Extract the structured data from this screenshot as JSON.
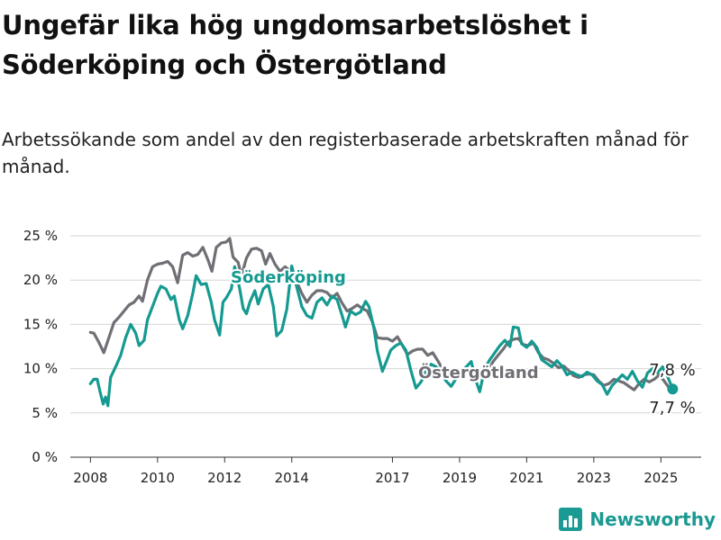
{
  "header": {
    "title": "Ungefär lika hög ungdomsarbetslöshet i Söderköping och Östergötland",
    "subtitle": "Arbetssökande som andel av den registerbaserade arbetskraften månad för månad."
  },
  "brand": {
    "name": "Newsworthy",
    "icon": "newsworthy-logo-icon",
    "color": "#1a9a92"
  },
  "chart_data": {
    "type": "line",
    "x_unit": "year",
    "xlim": [
      2007.4,
      2026.2
    ],
    "ylim": [
      0,
      25
    ],
    "x_ticks": [
      {
        "value": 2008,
        "label": "2008"
      },
      {
        "value": 2010,
        "label": "2010"
      },
      {
        "value": 2012,
        "label": "2012"
      },
      {
        "value": 2014,
        "label": "2014"
      },
      {
        "value": 2017,
        "label": "2017"
      },
      {
        "value": 2019,
        "label": "2019"
      },
      {
        "value": 2021,
        "label": "2021"
      },
      {
        "value": 2023,
        "label": "2023"
      },
      {
        "value": 2025,
        "label": "2025"
      }
    ],
    "y_ticks": [
      {
        "value": 0,
        "label": "0 %"
      },
      {
        "value": 5,
        "label": "5 %"
      },
      {
        "value": 10,
        "label": "10 %"
      },
      {
        "value": 15,
        "label": "15 %"
      },
      {
        "value": 20,
        "label": "20 %"
      },
      {
        "value": 25,
        "label": "25 %"
      }
    ],
    "grid": true,
    "series": [
      {
        "name": "Östergötland",
        "color": "#6f6f75",
        "end_label": "7,8 %",
        "points": [
          [
            2008.0,
            14.1
          ],
          [
            2008.1,
            14.0
          ],
          [
            2008.25,
            13.0
          ],
          [
            2008.4,
            11.8
          ],
          [
            2008.55,
            13.5
          ],
          [
            2008.7,
            15.2
          ],
          [
            2008.85,
            15.8
          ],
          [
            2009.0,
            16.5
          ],
          [
            2009.15,
            17.2
          ],
          [
            2009.3,
            17.5
          ],
          [
            2009.45,
            18.2
          ],
          [
            2009.55,
            17.6
          ],
          [
            2009.7,
            20.0
          ],
          [
            2009.85,
            21.5
          ],
          [
            2010.0,
            21.8
          ],
          [
            2010.15,
            21.9
          ],
          [
            2010.3,
            22.1
          ],
          [
            2010.45,
            21.5
          ],
          [
            2010.6,
            19.7
          ],
          [
            2010.75,
            22.8
          ],
          [
            2010.9,
            23.1
          ],
          [
            2011.05,
            22.7
          ],
          [
            2011.2,
            22.9
          ],
          [
            2011.35,
            23.7
          ],
          [
            2011.5,
            22.3
          ],
          [
            2011.62,
            21.0
          ],
          [
            2011.75,
            23.7
          ],
          [
            2011.9,
            24.2
          ],
          [
            2012.05,
            24.3
          ],
          [
            2012.15,
            24.7
          ],
          [
            2012.25,
            22.6
          ],
          [
            2012.4,
            22.0
          ],
          [
            2012.5,
            20.5
          ],
          [
            2012.65,
            22.5
          ],
          [
            2012.8,
            23.5
          ],
          [
            2012.95,
            23.6
          ],
          [
            2013.1,
            23.3
          ],
          [
            2013.22,
            21.8
          ],
          [
            2013.35,
            23.0
          ],
          [
            2013.5,
            21.8
          ],
          [
            2013.65,
            21.0
          ],
          [
            2013.8,
            21.5
          ],
          [
            2014.0,
            20.9
          ],
          [
            2014.15,
            19.8
          ],
          [
            2014.3,
            18.5
          ],
          [
            2014.45,
            17.5
          ],
          [
            2014.6,
            18.3
          ],
          [
            2014.75,
            18.8
          ],
          [
            2014.9,
            18.8
          ],
          [
            2015.05,
            18.6
          ],
          [
            2015.2,
            18.0
          ],
          [
            2015.35,
            18.5
          ],
          [
            2015.5,
            17.4
          ],
          [
            2015.65,
            16.5
          ],
          [
            2015.8,
            16.8
          ],
          [
            2015.95,
            17.2
          ],
          [
            2016.1,
            16.8
          ],
          [
            2016.25,
            16.5
          ],
          [
            2016.4,
            15.3
          ],
          [
            2016.55,
            13.5
          ],
          [
            2016.7,
            13.4
          ],
          [
            2016.85,
            13.4
          ],
          [
            2017.0,
            13.1
          ],
          [
            2017.15,
            13.6
          ],
          [
            2017.3,
            12.6
          ],
          [
            2017.45,
            11.6
          ],
          [
            2017.6,
            12.0
          ],
          [
            2017.75,
            12.2
          ],
          [
            2017.9,
            12.2
          ],
          [
            2018.05,
            11.5
          ],
          [
            2018.2,
            11.8
          ],
          [
            2018.35,
            10.9
          ],
          [
            2018.5,
            9.9
          ],
          [
            2018.65,
            9.2
          ],
          [
            2018.8,
            9.4
          ],
          [
            2018.95,
            9.8
          ],
          [
            2019.1,
            9.3
          ],
          [
            2019.25,
            9.9
          ],
          [
            2019.4,
            9.5
          ],
          [
            2019.55,
            9.2
          ],
          [
            2019.7,
            10.0
          ],
          [
            2019.85,
            9.8
          ],
          [
            2020.0,
            10.8
          ],
          [
            2020.15,
            11.5
          ],
          [
            2020.3,
            12.2
          ],
          [
            2020.45,
            13.0
          ],
          [
            2020.6,
            13.3
          ],
          [
            2020.75,
            13.4
          ],
          [
            2020.9,
            12.7
          ],
          [
            2021.05,
            12.6
          ],
          [
            2021.2,
            12.9
          ],
          [
            2021.35,
            11.8
          ],
          [
            2021.5,
            11.2
          ],
          [
            2021.65,
            11.0
          ],
          [
            2021.8,
            10.6
          ],
          [
            2021.95,
            10.1
          ],
          [
            2022.1,
            10.3
          ],
          [
            2022.25,
            9.8
          ],
          [
            2022.4,
            9.2
          ],
          [
            2022.55,
            9.0
          ],
          [
            2022.7,
            9.3
          ],
          [
            2022.85,
            9.4
          ],
          [
            2023.0,
            9.3
          ],
          [
            2023.15,
            8.6
          ],
          [
            2023.3,
            8.1
          ],
          [
            2023.45,
            8.3
          ],
          [
            2023.6,
            8.8
          ],
          [
            2023.75,
            8.6
          ],
          [
            2023.9,
            8.4
          ],
          [
            2024.05,
            8.0
          ],
          [
            2024.2,
            7.6
          ],
          [
            2024.35,
            8.3
          ],
          [
            2024.5,
            8.8
          ],
          [
            2024.65,
            8.5
          ],
          [
            2024.8,
            8.8
          ],
          [
            2024.95,
            9.3
          ],
          [
            2025.1,
            8.6
          ],
          [
            2025.25,
            7.8
          ]
        ]
      },
      {
        "name": "Söderköping",
        "color": "#159a91",
        "end_label": "7,7 %",
        "points": [
          [
            2008.0,
            8.3
          ],
          [
            2008.1,
            8.8
          ],
          [
            2008.2,
            8.8
          ],
          [
            2008.3,
            7.2
          ],
          [
            2008.38,
            6.0
          ],
          [
            2008.45,
            6.8
          ],
          [
            2008.52,
            5.8
          ],
          [
            2008.6,
            9.0
          ],
          [
            2008.75,
            10.2
          ],
          [
            2008.9,
            11.5
          ],
          [
            2009.05,
            13.5
          ],
          [
            2009.2,
            15.0
          ],
          [
            2009.35,
            14.0
          ],
          [
            2009.45,
            12.6
          ],
          [
            2009.6,
            13.2
          ],
          [
            2009.7,
            15.5
          ],
          [
            2009.85,
            17.0
          ],
          [
            2010.0,
            18.5
          ],
          [
            2010.1,
            19.3
          ],
          [
            2010.25,
            19.0
          ],
          [
            2010.4,
            17.8
          ],
          [
            2010.5,
            18.2
          ],
          [
            2010.65,
            15.5
          ],
          [
            2010.75,
            14.5
          ],
          [
            2010.9,
            16.0
          ],
          [
            2011.05,
            18.5
          ],
          [
            2011.15,
            20.5
          ],
          [
            2011.3,
            19.5
          ],
          [
            2011.45,
            19.6
          ],
          [
            2011.6,
            17.5
          ],
          [
            2011.7,
            15.5
          ],
          [
            2011.85,
            13.8
          ],
          [
            2011.95,
            17.5
          ],
          [
            2012.05,
            18.0
          ],
          [
            2012.2,
            19.0
          ],
          [
            2012.3,
            21.5
          ],
          [
            2012.45,
            19.0
          ],
          [
            2012.55,
            16.8
          ],
          [
            2012.65,
            16.2
          ],
          [
            2012.75,
            17.5
          ],
          [
            2012.9,
            18.8
          ],
          [
            2013.0,
            17.3
          ],
          [
            2013.15,
            19.0
          ],
          [
            2013.3,
            19.5
          ],
          [
            2013.45,
            17.0
          ],
          [
            2013.55,
            13.7
          ],
          [
            2013.7,
            14.3
          ],
          [
            2013.85,
            16.7
          ],
          [
            2014.0,
            21.6
          ],
          [
            2014.15,
            19.2
          ],
          [
            2014.3,
            17.0
          ],
          [
            2014.45,
            16.0
          ],
          [
            2014.6,
            15.7
          ],
          [
            2014.75,
            17.5
          ],
          [
            2014.9,
            18.0
          ],
          [
            2015.05,
            17.2
          ],
          [
            2015.2,
            18.2
          ],
          [
            2015.35,
            17.8
          ],
          [
            2015.5,
            16.0
          ],
          [
            2015.6,
            14.7
          ],
          [
            2015.75,
            16.5
          ],
          [
            2015.9,
            16.1
          ],
          [
            2016.05,
            16.4
          ],
          [
            2016.2,
            17.6
          ],
          [
            2016.3,
            17.0
          ],
          [
            2016.45,
            14.5
          ],
          [
            2016.55,
            12.0
          ],
          [
            2016.7,
            9.7
          ],
          [
            2016.82,
            10.8
          ],
          [
            2016.95,
            12.1
          ],
          [
            2017.1,
            12.6
          ],
          [
            2017.25,
            12.9
          ],
          [
            2017.4,
            12.1
          ],
          [
            2017.55,
            9.8
          ],
          [
            2017.7,
            7.8
          ],
          [
            2017.85,
            8.5
          ],
          [
            2018.0,
            9.7
          ],
          [
            2018.15,
            10.5
          ],
          [
            2018.3,
            10.2
          ],
          [
            2018.45,
            9.5
          ],
          [
            2018.6,
            8.6
          ],
          [
            2018.75,
            8.0
          ],
          [
            2018.9,
            8.9
          ],
          [
            2019.05,
            9.7
          ],
          [
            2019.2,
            10.2
          ],
          [
            2019.35,
            10.8
          ],
          [
            2019.5,
            8.5
          ],
          [
            2019.6,
            7.4
          ],
          [
            2019.75,
            10.0
          ],
          [
            2019.9,
            11.0
          ],
          [
            2020.05,
            11.8
          ],
          [
            2020.2,
            12.6
          ],
          [
            2020.35,
            13.2
          ],
          [
            2020.5,
            12.5
          ],
          [
            2020.6,
            14.7
          ],
          [
            2020.75,
            14.6
          ],
          [
            2020.85,
            12.8
          ],
          [
            2021.0,
            12.4
          ],
          [
            2021.15,
            13.1
          ],
          [
            2021.3,
            12.4
          ],
          [
            2021.45,
            11.0
          ],
          [
            2021.6,
            10.6
          ],
          [
            2021.75,
            10.2
          ],
          [
            2021.9,
            10.9
          ],
          [
            2022.05,
            10.3
          ],
          [
            2022.2,
            9.3
          ],
          [
            2022.35,
            9.6
          ],
          [
            2022.5,
            9.3
          ],
          [
            2022.65,
            9.1
          ],
          [
            2022.8,
            9.6
          ],
          [
            2022.95,
            9.3
          ],
          [
            2023.1,
            8.6
          ],
          [
            2023.25,
            8.2
          ],
          [
            2023.4,
            7.1
          ],
          [
            2023.55,
            8.1
          ],
          [
            2023.7,
            8.7
          ],
          [
            2023.85,
            9.3
          ],
          [
            2024.0,
            8.8
          ],
          [
            2024.15,
            9.7
          ],
          [
            2024.3,
            8.6
          ],
          [
            2024.45,
            7.9
          ],
          [
            2024.6,
            9.5
          ],
          [
            2024.75,
            10.0
          ],
          [
            2024.9,
            9.5
          ],
          [
            2025.05,
            10.2
          ],
          [
            2025.2,
            9.1
          ],
          [
            2025.35,
            7.7
          ]
        ]
      }
    ]
  }
}
